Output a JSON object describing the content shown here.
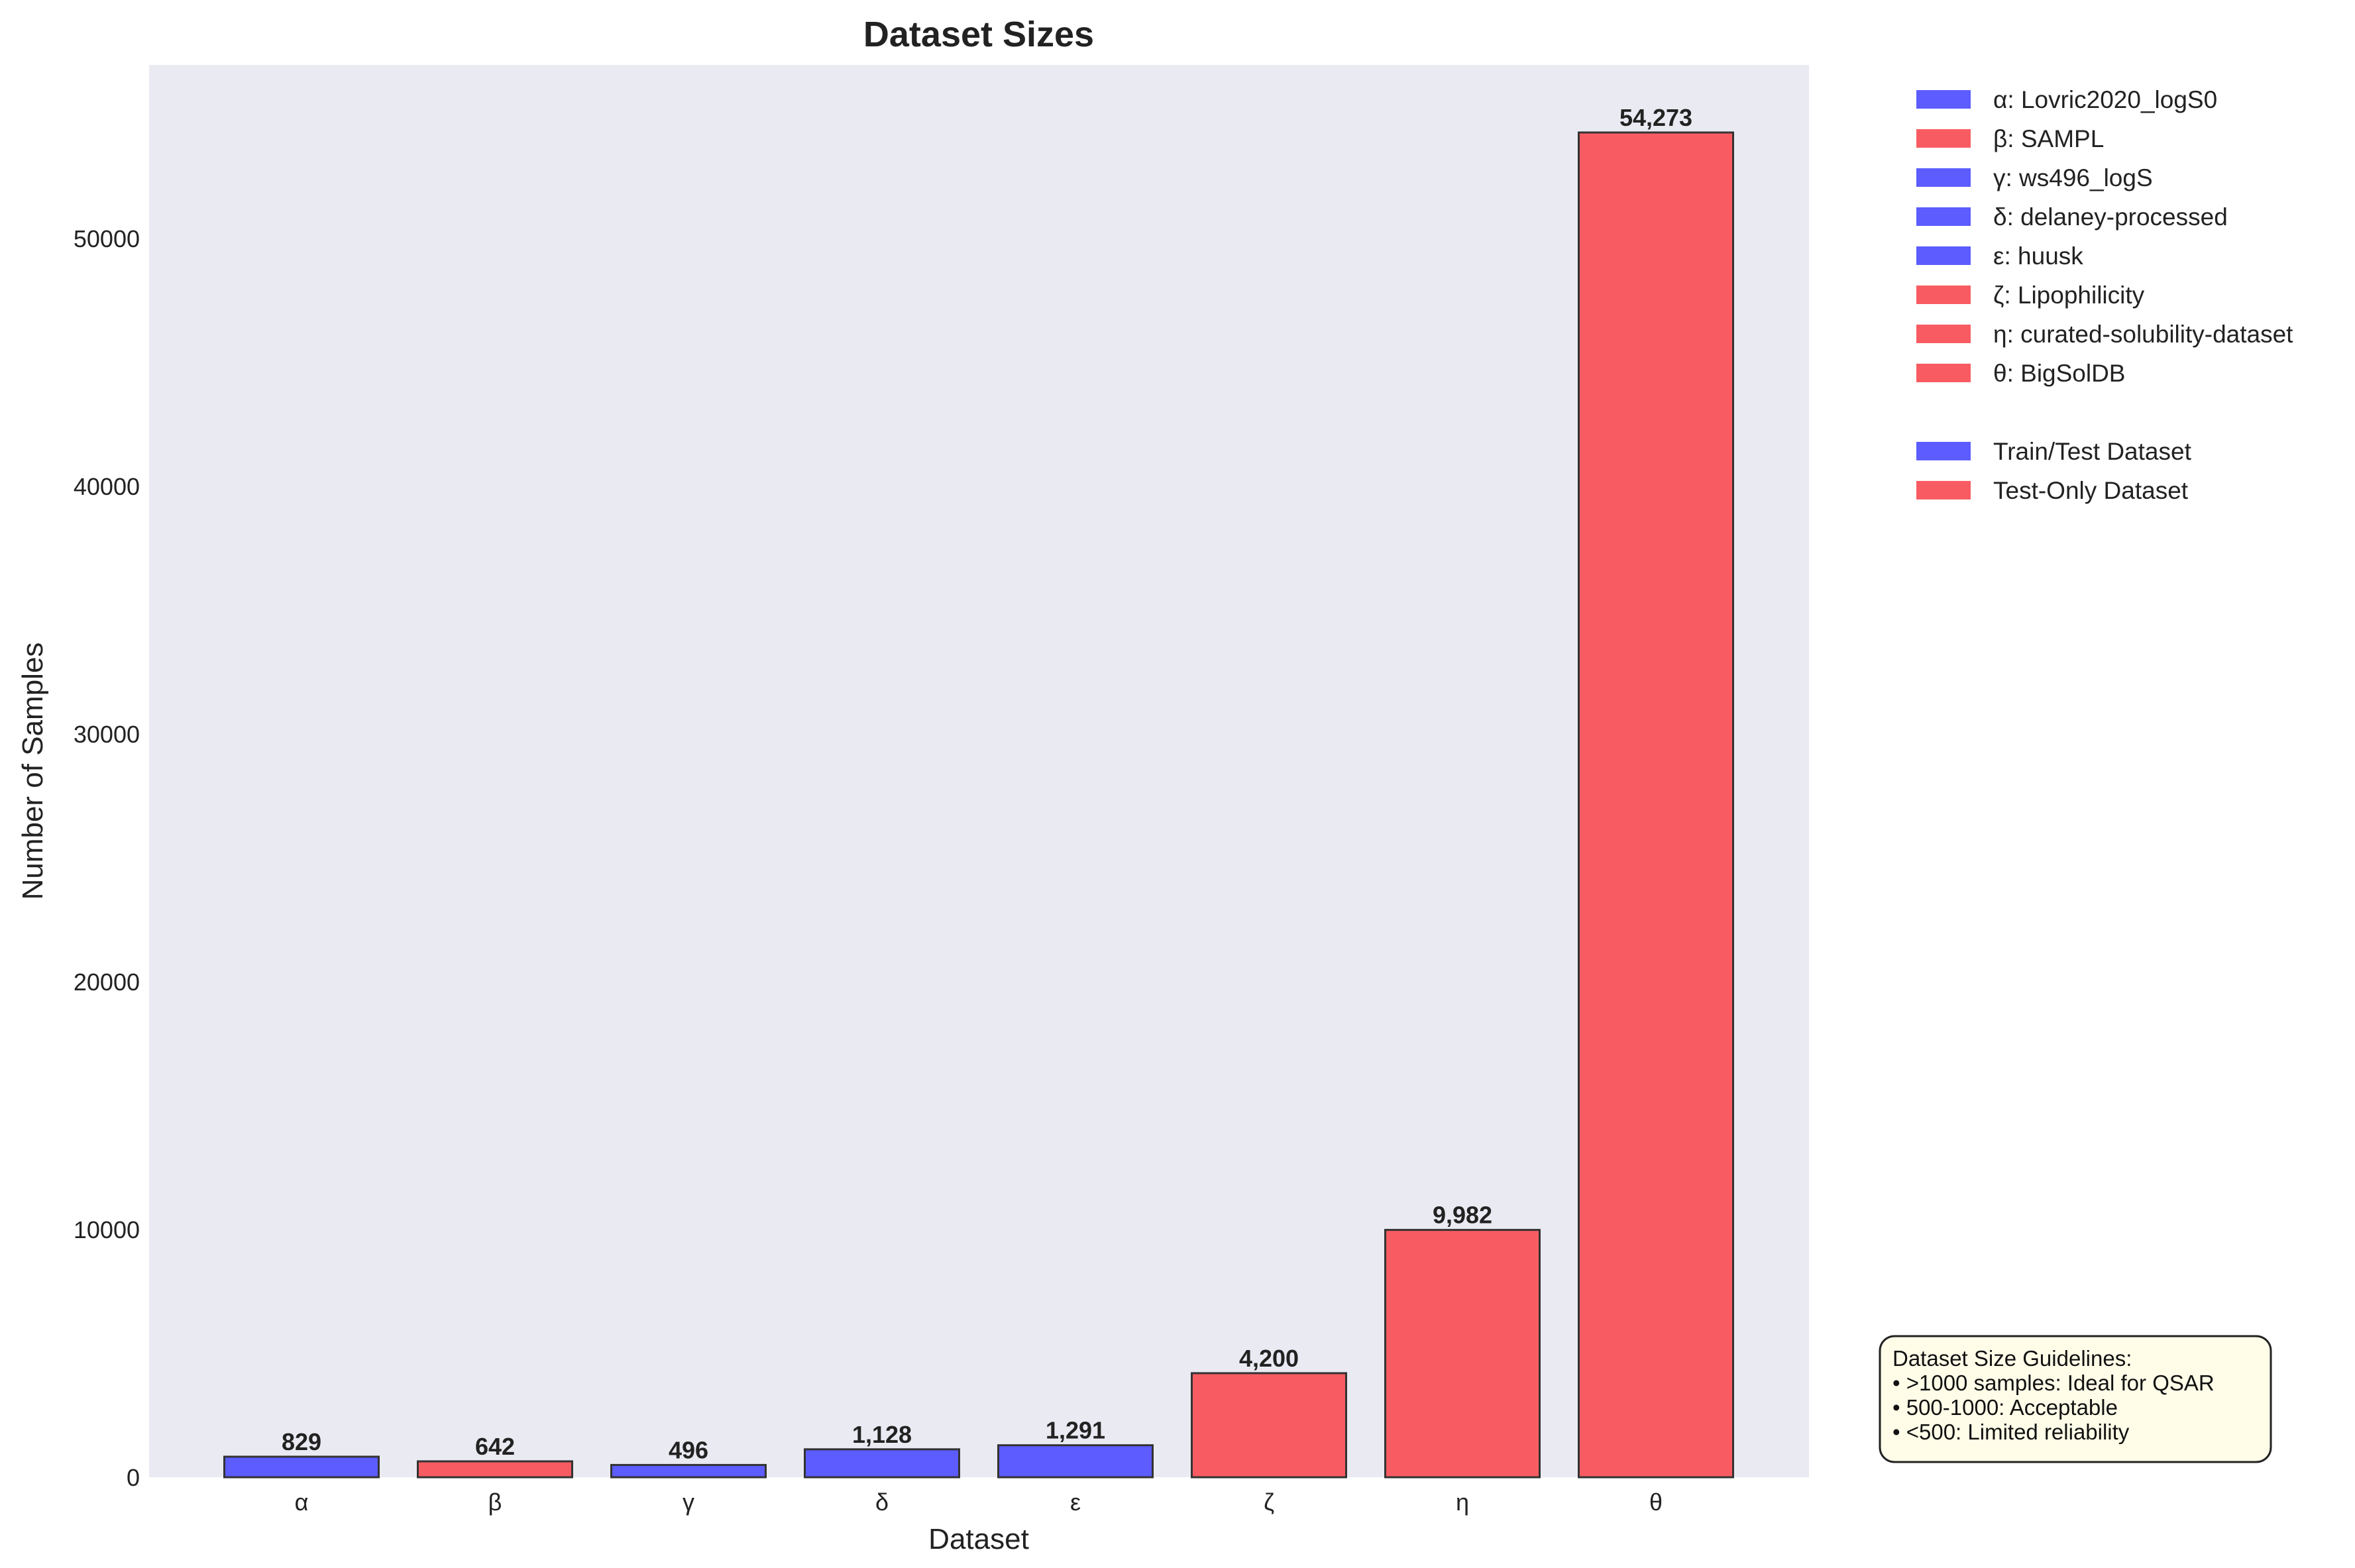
{
  "chart_data": {
    "type": "bar",
    "title": "Dataset Sizes",
    "xlabel": "Dataset",
    "ylabel": "Number of Samples",
    "ylim": [
      0,
      57000
    ],
    "yticks": [
      0,
      10000,
      20000,
      30000,
      40000,
      50000
    ],
    "yticks_labels": [
      "0",
      "10000",
      "20000",
      "30000",
      "40000",
      "50000"
    ],
    "grid": false,
    "legend_position": "outside-right",
    "categories": [
      "α",
      "β",
      "γ",
      "δ",
      "ε",
      "ζ",
      "η",
      "θ"
    ],
    "values": [
      829,
      642,
      496,
      1128,
      1291,
      4200,
      9982,
      54273
    ],
    "value_labels": [
      "829",
      "642",
      "496",
      "1,128",
      "1,291",
      "4,200",
      "9,982",
      "54,273"
    ],
    "groups": [
      "train-test",
      "test-only",
      "train-test",
      "train-test",
      "train-test",
      "test-only",
      "test-only",
      "test-only"
    ],
    "legend": {
      "dataset_entries": [
        {
          "label": "α: Lovric2020_logS0",
          "group": "train-test"
        },
        {
          "label": "β: SAMPL",
          "group": "test-only"
        },
        {
          "label": "γ: ws496_logS",
          "group": "train-test"
        },
        {
          "label": "δ: delaney-processed",
          "group": "train-test"
        },
        {
          "label": "ε: huusk",
          "group": "train-test"
        },
        {
          "label": "ζ: Lipophilicity",
          "group": "test-only"
        },
        {
          "label": "η: curated-solubility-dataset",
          "group": "test-only"
        },
        {
          "label": "θ: BigSolDB",
          "group": "test-only"
        }
      ],
      "group_entries": [
        {
          "label": "Train/Test Dataset",
          "group": "train-test"
        },
        {
          "label": "Test-Only Dataset",
          "group": "test-only"
        }
      ]
    },
    "annotation": {
      "lines": [
        "Dataset Size Guidelines:",
        "• >1000 samples: Ideal for QSAR",
        "• 500-1000: Acceptable",
        "• <500: Limited reliability"
      ]
    },
    "colors": {
      "train-test": "#5c5cff",
      "test-only": "#f85c62",
      "plot_background": "#eaeaf2",
      "bar_edge": "#333333",
      "annotation_background": "#fffde8"
    }
  }
}
